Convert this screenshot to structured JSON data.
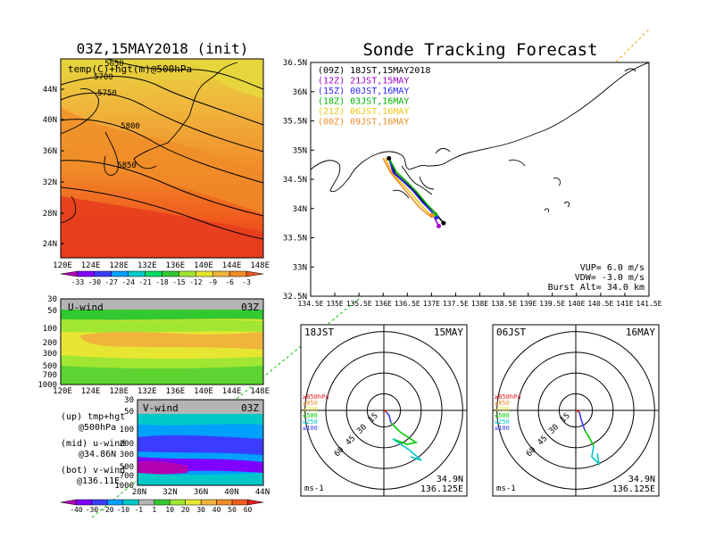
{
  "left": {
    "title": "03Z,15MAY2018 (init)",
    "map": {
      "label": "temp(C)+hgt(m)@500hPa",
      "lat_ticks": [
        "44N",
        "40N",
        "36N",
        "32N",
        "28N",
        "24N"
      ],
      "lon_ticks": [
        "120E",
        "124E",
        "128E",
        "132E",
        "136E",
        "140E",
        "144E",
        "148E"
      ],
      "contours": [
        "5650",
        "5700",
        "5750",
        "5800",
        "5850"
      ]
    },
    "temp_colorbar": {
      "labels": [
        "-33",
        "-30",
        "-27",
        "-24",
        "-21",
        "-18",
        "-15",
        "-12",
        "-9",
        "-6",
        "-3"
      ],
      "colors": [
        "#b300b3",
        "#7f00ff",
        "#3c3cff",
        "#00a0ff",
        "#00c8c8",
        "#00dc64",
        "#32c832",
        "#a0e632",
        "#e6e632",
        "#f0b43c",
        "#f08c28",
        "#f05a1e"
      ]
    },
    "uwind": {
      "label": "U-wind",
      "time": "03Z",
      "p_ticks": [
        "30",
        "50",
        "100",
        "200",
        "300",
        "500",
        "700",
        "1000"
      ],
      "lon_ticks": [
        "120E",
        "124E",
        "128E",
        "132E",
        "136E",
        "140E",
        "144E",
        "148E"
      ]
    },
    "vwind": {
      "label": "V-wind",
      "time": "03Z",
      "p_ticks": [
        "30",
        "50",
        "100",
        "200",
        "300",
        "500",
        "700",
        "1000"
      ],
      "lat_ticks": [
        "28N",
        "32N",
        "36N",
        "40N",
        "44N"
      ]
    },
    "legend": {
      "up": [
        "(up) tmp+hgt",
        "@500hPa"
      ],
      "mid": [
        "(mid) u-wind",
        "@34.86N"
      ],
      "bot": [
        "(bot) v-wind",
        "@136.11E"
      ]
    },
    "wind_colorbar": {
      "labels": [
        "-40",
        "-30",
        "-20",
        "-10",
        "-1",
        "1",
        "10",
        "20",
        "30",
        "40",
        "50",
        "60"
      ],
      "colors": [
        "#b300b3",
        "#7f00ff",
        "#3c3cff",
        "#00a0ff",
        "#00c8c8",
        "#b4b4b4",
        "#32c832",
        "#a0e632",
        "#e6e632",
        "#f0b43c",
        "#f08c28",
        "#f05a1e",
        "#e61e1e"
      ]
    }
  },
  "right": {
    "title": "Sonde Tracking Forecast",
    "lat_ticks": [
      "36.5N",
      "36N",
      "35.5N",
      "35N",
      "34.5N",
      "34N",
      "33.5N",
      "33N",
      "32.5N"
    ],
    "lon_ticks": [
      "134.5E",
      "135E",
      "135.5E",
      "136E",
      "136.5E",
      "137E",
      "137.5E",
      "138E",
      "138.5E",
      "139E",
      "139.5E",
      "140E",
      "140.5E",
      "141E",
      "141.5E"
    ],
    "legend": [
      {
        "label": "(09Z)  18JST,15MAY2018",
        "color": "#000000"
      },
      {
        "label": "(12Z)  21JST,15MAY",
        "color": "#a000c8"
      },
      {
        "label": "(15Z)  00JST,16MAY",
        "color": "#2828ff"
      },
      {
        "label": "(18Z)  03JST,16MAY",
        "color": "#00b400"
      },
      {
        "label": "(21Z)  06JST,16MAY",
        "color": "#f0c814"
      },
      {
        "label": "(00Z)  09JST,16MAY",
        "color": "#f08c28"
      }
    ],
    "params": {
      "vup": "VUP=  6.0 m/s",
      "vdw": "VDW= -3.0 m/s",
      "burst": "Burst Alt=  34.0 km"
    }
  },
  "hodographs": [
    {
      "time_label": "18JST",
      "date_label": "15MAY",
      "unit": "ms-1",
      "lat": "34.9N",
      "lon": "136.125E",
      "ring_labels": [
        "15",
        "30",
        "45",
        "60"
      ],
      "levels": [
        {
          "label": "≥850hPa",
          "color": "#e61e1e"
        },
        {
          "label": "≤850",
          "color": "#f08c28"
        },
        {
          "label": "≤700",
          "color": "#e6e632"
        },
        {
          "label": "≤500",
          "color": "#00c800"
        },
        {
          "label": "≤250",
          "color": "#00c8c8"
        },
        {
          "label": "≤100",
          "color": "#3c3cff"
        }
      ]
    },
    {
      "time_label": "06JST",
      "date_label": "16MAY",
      "unit": "ms-1",
      "lat": "34.9N",
      "lon": "136.125E",
      "ring_labels": [
        "15",
        "30",
        "45",
        "60"
      ],
      "levels": [
        {
          "label": "≥850hPa",
          "color": "#e61e1e"
        },
        {
          "label": "≤850",
          "color": "#f08c28"
        },
        {
          "label": "≤700",
          "color": "#e6e632"
        },
        {
          "label": "≤500",
          "color": "#00c800"
        },
        {
          "label": "≤250",
          "color": "#00c8c8"
        },
        {
          "label": "≤100",
          "color": "#3c3cff"
        }
      ]
    }
  ],
  "chart_data": [
    {
      "type": "heatmap",
      "title": "03Z,15MAY2018 (init)",
      "field": "temp(C)+hgt(m)@500hPa",
      "xlim": [
        "120E",
        "149E"
      ],
      "ylim": [
        "22N",
        "47N"
      ],
      "contour_levels_m": [
        5650,
        5700,
        5750,
        5800,
        5850
      ]
    },
    {
      "type": "heatmap",
      "field": "U-wind",
      "x": [
        "120E",
        "124E",
        "128E",
        "132E",
        "136E",
        "140E",
        "144E",
        "148E"
      ],
      "y_hPa": [
        30,
        50,
        100,
        200,
        300,
        500,
        700,
        1000
      ]
    },
    {
      "type": "heatmap",
      "field": "V-wind",
      "x": [
        "28N",
        "32N",
        "36N",
        "40N",
        "44N"
      ],
      "y_hPa": [
        30,
        50,
        100,
        200,
        300,
        500,
        700,
        1000
      ]
    },
    {
      "type": "line",
      "title": "Sonde Tracking Forecast",
      "x_unit": "E longitude",
      "y_unit": "N latitude",
      "xlim": [
        134.5,
        141.5
      ],
      "ylim": [
        32.5,
        36.5
      ],
      "launch": [
        136.12,
        34.86
      ],
      "series": [
        {
          "name": "(09Z)  18JST,15MAY2018",
          "lon": [
            136.12,
            136.25,
            136.45,
            136.65,
            136.85,
            137.05,
            137.25
          ],
          "lat": [
            34.86,
            34.6,
            34.45,
            34.3,
            34.1,
            33.95,
            33.75
          ]
        },
        {
          "name": "(12Z)  21JST,15MAY",
          "lon": [
            136.12,
            136.2,
            136.4,
            136.6,
            136.8,
            137.0,
            137.15
          ],
          "lat": [
            34.86,
            34.62,
            34.48,
            34.32,
            34.12,
            33.95,
            33.7
          ]
        },
        {
          "name": "(15Z)  00JST,16MAY",
          "lon": [
            136.12,
            136.22,
            136.42,
            136.62,
            136.82,
            137.0,
            137.1
          ],
          "lat": [
            34.86,
            34.6,
            34.46,
            34.3,
            34.1,
            33.95,
            33.85
          ]
        },
        {
          "name": "(18Z)  03JST,16MAY",
          "lon": [
            136.12,
            136.28,
            136.5,
            136.7,
            136.9,
            137.05,
            137.08
          ],
          "lat": [
            34.86,
            34.62,
            34.45,
            34.28,
            34.08,
            33.95,
            33.9
          ]
        },
        {
          "name": "(21Z)  06JST,16MAY",
          "lon": [
            136.05,
            136.18,
            136.38,
            136.58,
            136.78,
            136.95,
            137.02
          ],
          "lat": [
            34.86,
            34.6,
            34.44,
            34.26,
            34.06,
            33.92,
            33.88
          ]
        },
        {
          "name": "(00Z)  09JST,16MAY",
          "lon": [
            136.0,
            136.15,
            136.35,
            136.55,
            136.75,
            136.92,
            137.0
          ],
          "lat": [
            34.86,
            34.62,
            34.42,
            34.22,
            34.02,
            33.9,
            33.88
          ]
        }
      ]
    }
  ]
}
